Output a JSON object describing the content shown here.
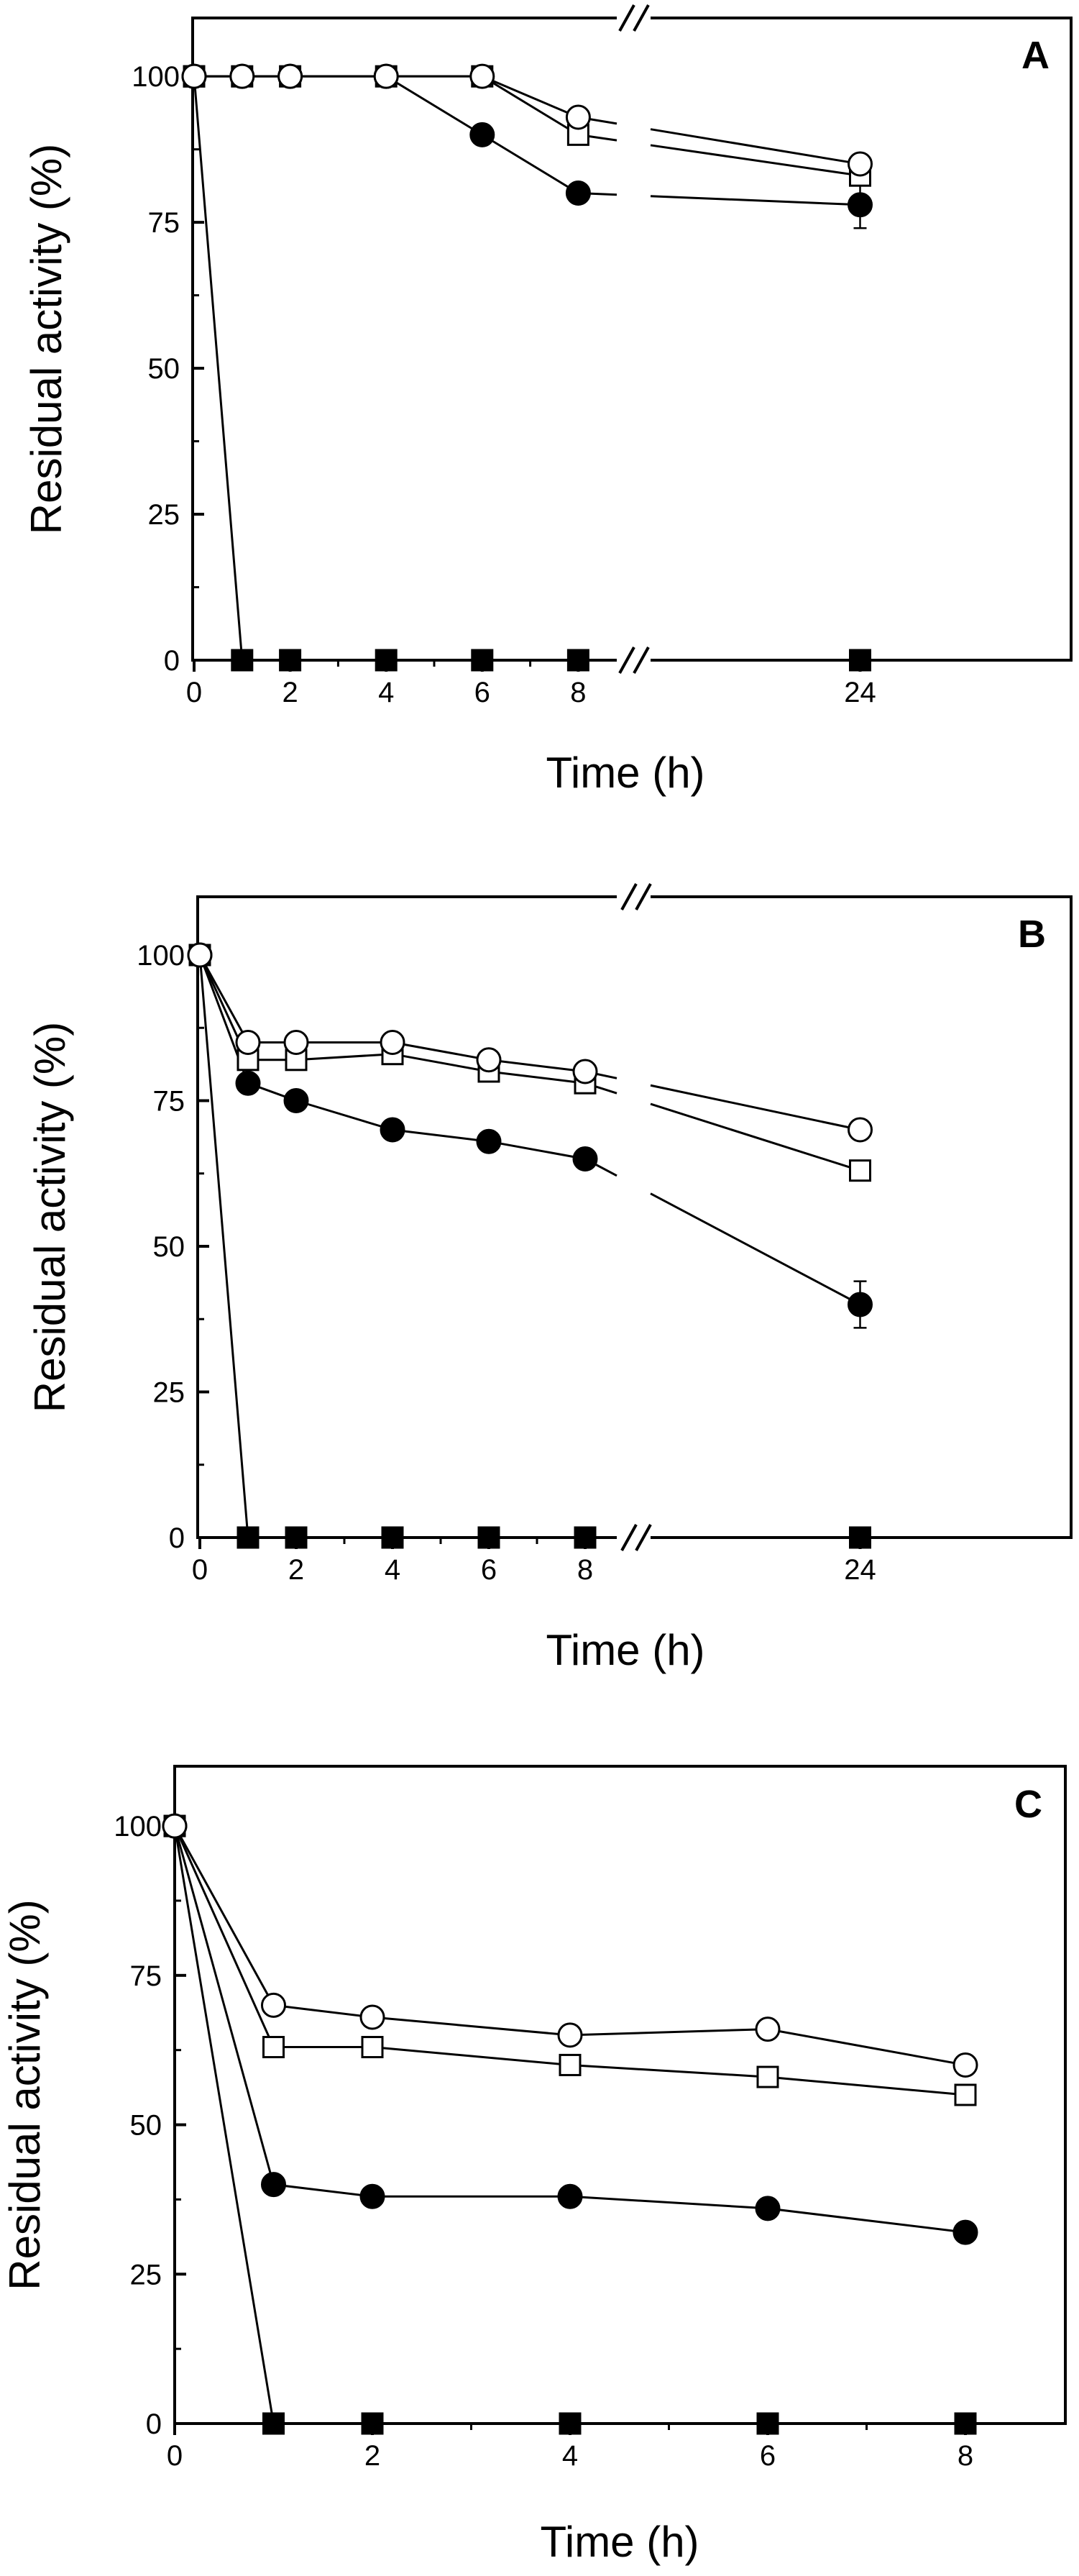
{
  "figure": {
    "symbol_legend": [
      {
        "series": "open-circle",
        "marker": "circle",
        "fill": "none"
      },
      {
        "series": "open-square",
        "marker": "square",
        "fill": "none"
      },
      {
        "series": "filled-circle",
        "marker": "circle",
        "fill": "black"
      },
      {
        "series": "filled-square",
        "marker": "square",
        "fill": "black"
      }
    ]
  },
  "chart_data": [
    {
      "type": "line",
      "panel_label": "A",
      "xlabel": "Time (h)",
      "ylabel": "Residual activity (%)",
      "broken_x_axis": true,
      "axis_break_before": 24,
      "x_ticks": [
        0,
        2,
        4,
        6,
        8,
        24
      ],
      "y_ticks": [
        0,
        25,
        50,
        75,
        100
      ],
      "ylim": [
        0,
        110
      ],
      "series": [
        {
          "name": "open-circle",
          "marker": "circle",
          "filled": false,
          "x": [
            0,
            1,
            2,
            4,
            6,
            8,
            24
          ],
          "values": [
            100,
            100,
            100,
            100,
            100,
            93,
            85
          ],
          "errors": [
            0,
            0,
            0,
            1,
            1,
            1.5,
            0
          ]
        },
        {
          "name": "open-square",
          "marker": "square",
          "filled": false,
          "x": [
            0,
            1,
            2,
            4,
            6,
            8,
            24
          ],
          "values": [
            100,
            100,
            100,
            100,
            100,
            90,
            83
          ],
          "errors": [
            0,
            0,
            0,
            0,
            0,
            1.5,
            1.5
          ]
        },
        {
          "name": "filled-circle",
          "marker": "circle",
          "filled": true,
          "x": [
            0,
            1,
            2,
            4,
            6,
            8,
            24
          ],
          "values": [
            100,
            100,
            100,
            100,
            90,
            80,
            78
          ],
          "errors": [
            0,
            0,
            0,
            0,
            0,
            0,
            4
          ]
        },
        {
          "name": "filled-square",
          "marker": "square",
          "filled": true,
          "x": [
            0,
            1,
            2,
            4,
            6,
            8,
            24
          ],
          "values": [
            100,
            0,
            0,
            0,
            0,
            0,
            0
          ],
          "errors": [
            0,
            0,
            0,
            0,
            0,
            0,
            0
          ]
        }
      ]
    },
    {
      "type": "line",
      "panel_label": "B",
      "xlabel": "Time (h)",
      "ylabel": "Residual activity (%)",
      "broken_x_axis": true,
      "axis_break_before": 24,
      "x_ticks": [
        0,
        2,
        4,
        6,
        8,
        24
      ],
      "y_ticks": [
        0,
        25,
        50,
        75,
        100
      ],
      "ylim": [
        0,
        110
      ],
      "series": [
        {
          "name": "open-circle",
          "marker": "circle",
          "filled": false,
          "x": [
            0,
            1,
            2,
            4,
            6,
            8,
            24
          ],
          "values": [
            100,
            85,
            85,
            85,
            82,
            80,
            70
          ],
          "errors": [
            0,
            0,
            0,
            1,
            1,
            1.5,
            0
          ]
        },
        {
          "name": "open-square",
          "marker": "square",
          "filled": false,
          "x": [
            0,
            1,
            2,
            4,
            6,
            8,
            24
          ],
          "values": [
            100,
            82,
            82,
            83,
            80,
            78,
            63
          ],
          "errors": [
            0,
            0,
            1,
            1,
            1,
            1.5,
            1.5
          ]
        },
        {
          "name": "filled-circle",
          "marker": "circle",
          "filled": true,
          "x": [
            0,
            1,
            2,
            4,
            6,
            8,
            24
          ],
          "values": [
            100,
            78,
            75,
            70,
            68,
            65,
            40
          ],
          "errors": [
            0,
            0,
            0,
            0,
            0,
            0,
            4
          ]
        },
        {
          "name": "filled-square",
          "marker": "square",
          "filled": true,
          "x": [
            0,
            1,
            2,
            4,
            6,
            8,
            24
          ],
          "values": [
            100,
            0,
            0,
            0,
            0,
            0,
            0
          ],
          "errors": [
            0,
            0,
            0,
            0,
            0,
            0,
            0
          ]
        }
      ]
    },
    {
      "type": "line",
      "panel_label": "C",
      "xlabel": "Time (h)",
      "ylabel": "Residual activity (%)",
      "broken_x_axis": false,
      "x_ticks": [
        0,
        2,
        4,
        6,
        8
      ],
      "y_ticks": [
        0,
        25,
        50,
        75,
        100
      ],
      "xlim": [
        0,
        9
      ],
      "ylim": [
        0,
        110
      ],
      "series": [
        {
          "name": "open-circle",
          "marker": "circle",
          "filled": false,
          "x": [
            0,
            1,
            2,
            4,
            6,
            8
          ],
          "values": [
            100,
            70,
            68,
            65,
            66,
            60
          ],
          "errors": [
            0,
            0,
            0,
            1.5,
            0,
            0
          ]
        },
        {
          "name": "open-square",
          "marker": "square",
          "filled": false,
          "x": [
            0,
            1,
            2,
            4,
            6,
            8
          ],
          "values": [
            100,
            63,
            63,
            60,
            58,
            55
          ],
          "errors": [
            0,
            0,
            1.5,
            0,
            1.5,
            1
          ]
        },
        {
          "name": "filled-circle",
          "marker": "circle",
          "filled": true,
          "x": [
            0,
            1,
            2,
            4,
            6,
            8
          ],
          "values": [
            100,
            40,
            38,
            38,
            36,
            32
          ],
          "errors": [
            0,
            0,
            0,
            0,
            0,
            0
          ]
        },
        {
          "name": "filled-square",
          "marker": "square",
          "filled": true,
          "x": [
            0,
            1,
            2,
            4,
            6,
            8
          ],
          "values": [
            100,
            0,
            0,
            0,
            0,
            0
          ],
          "errors": [
            0,
            0,
            0,
            0,
            0,
            0
          ]
        }
      ]
    }
  ]
}
